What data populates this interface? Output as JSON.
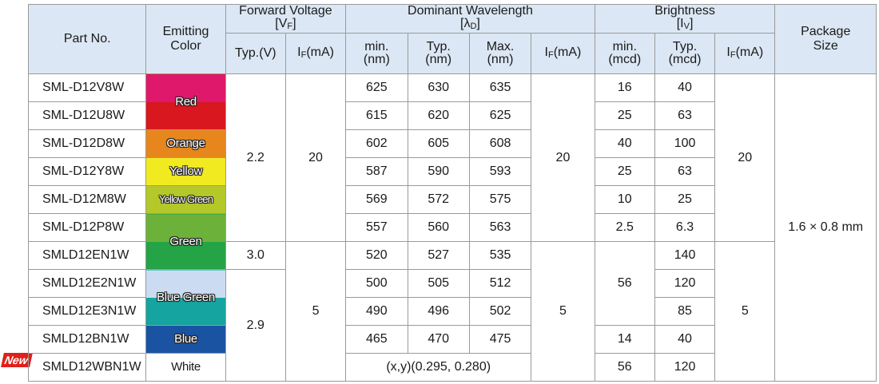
{
  "badge": "New",
  "headers": {
    "part_no": "Part No.",
    "emitting_color": [
      "Emitting",
      "Color"
    ],
    "forward_voltage": {
      "title": "Forward Voltage",
      "symbol_open": "[V",
      "symbol_sub": "F",
      "symbol_close": "]"
    },
    "dominant_wavelength": {
      "title": "Dominant Wavelength",
      "symbol_open": "[λ",
      "symbol_sub": "D",
      "symbol_close": "]"
    },
    "brightness": {
      "title": "Brightness",
      "symbol_open": "[I",
      "symbol_sub": "V",
      "symbol_close": "]"
    },
    "package_size": [
      "Package",
      "Size"
    ],
    "vf_typ": "Typ.(V)",
    "if_ma": {
      "prefix": "I",
      "sub": "F",
      "suffix": "(mA)"
    },
    "wl_min": [
      "min.",
      "(nm)"
    ],
    "wl_typ": [
      "Typ.",
      "(nm)"
    ],
    "wl_max": [
      "Max.",
      "(nm)"
    ],
    "br_min": [
      "min.",
      "(mcd)"
    ],
    "br_typ": [
      "Typ.",
      "(mcd)"
    ]
  },
  "colors": {
    "red": "Red",
    "orange": "Orange",
    "yellow": "Yellow",
    "yellow_green": "Yellow Green",
    "green": "Green",
    "blue_green": "Blue Green",
    "blue": "Blue",
    "white": "White"
  },
  "color_swatches": {
    "red_top": "#e0186b",
    "red_bottom": "#d8171f",
    "orange": "#e8861e",
    "yellow": "#f2ea21",
    "yellow_green": "#b5c82a",
    "green_top": "#6cb23a",
    "green_bottom": "#24a447",
    "blue_green_top": "#cbdcf2",
    "blue_green_bottom": "#15a4a0",
    "blue": "#1b53a3",
    "header_bg": "#dbe7f4",
    "badge_bg": "#e0201a"
  },
  "merged": {
    "vf_group1": "2.2",
    "if_group1": "20",
    "vf_green": "3.0",
    "vf_group2": "2.9",
    "if_group2": "5",
    "wl_if_group1": "20",
    "wl_if_group2": "5",
    "br_if_group1": "20",
    "br_if_group2": "5",
    "br_min_shared": "56",
    "package": "1.6 × 0.8 mm",
    "white_wavelength": "(x,y)(0.295, 0.280)"
  },
  "rows": [
    {
      "part": "SML-D12V8W",
      "wl_min": "625",
      "wl_typ": "630",
      "wl_max": "635",
      "br_min": "16",
      "br_typ": "40"
    },
    {
      "part": "SML-D12U8W",
      "wl_min": "615",
      "wl_typ": "620",
      "wl_max": "625",
      "br_min": "25",
      "br_typ": "63"
    },
    {
      "part": "SML-D12D8W",
      "wl_min": "602",
      "wl_typ": "605",
      "wl_max": "608",
      "br_min": "40",
      "br_typ": "100"
    },
    {
      "part": "SML-D12Y8W",
      "wl_min": "587",
      "wl_typ": "590",
      "wl_max": "593",
      "br_min": "25",
      "br_typ": "63"
    },
    {
      "part": "SML-D12M8W",
      "wl_min": "569",
      "wl_typ": "572",
      "wl_max": "575",
      "br_min": "10",
      "br_typ": "25"
    },
    {
      "part": "SML-D12P8W",
      "wl_min": "557",
      "wl_typ": "560",
      "wl_max": "563",
      "br_min": "2.5",
      "br_typ": "6.3"
    },
    {
      "part": "SMLD12EN1W",
      "wl_min": "520",
      "wl_typ": "527",
      "wl_max": "535",
      "br_typ": "140"
    },
    {
      "part": "SMLD12E2N1W",
      "wl_min": "500",
      "wl_typ": "505",
      "wl_max": "512",
      "br_typ": "120"
    },
    {
      "part": "SMLD12E3N1W",
      "wl_min": "490",
      "wl_typ": "496",
      "wl_max": "502",
      "br_typ": "85"
    },
    {
      "part": "SMLD12BN1W",
      "wl_min": "465",
      "wl_typ": "470",
      "wl_max": "475",
      "br_min": "14",
      "br_typ": "40"
    },
    {
      "part": "SMLD12WBN1W",
      "br_min": "56",
      "br_typ": "120"
    }
  ]
}
